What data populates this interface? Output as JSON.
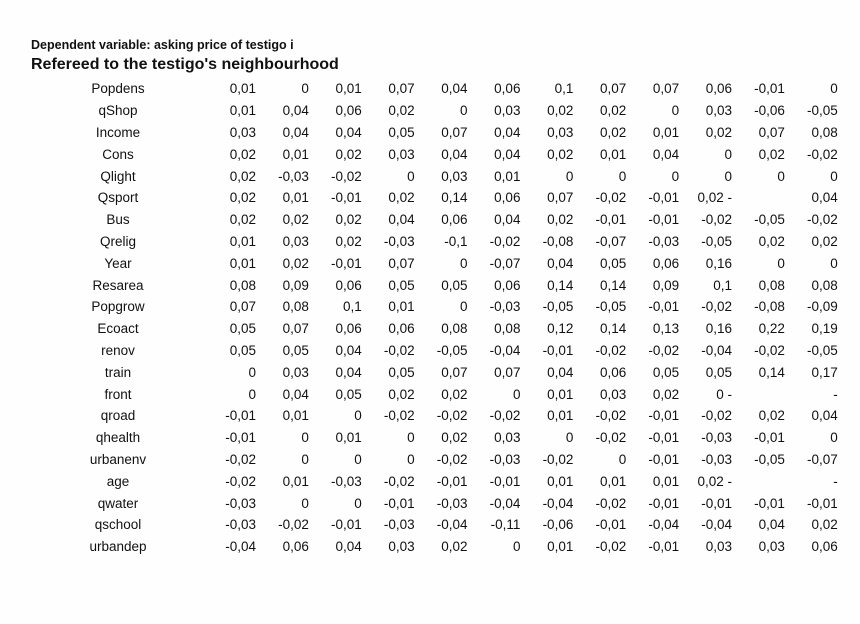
{
  "header": {
    "dependent": "Dependent variable: asking price of testigo i",
    "title": "Refereed to the testigo's neighbourhood"
  },
  "rows": [
    {
      "label": "Popdens",
      "values": [
        "0,01",
        "0",
        "0,01",
        "0,07",
        "0,04",
        "0,06",
        "0,1",
        "0,07",
        "0,07",
        "0,06",
        "-0,01",
        "0"
      ]
    },
    {
      "label": "qShop",
      "values": [
        "0,01",
        "0,04",
        "0,06",
        "0,02",
        "0",
        "0,03",
        "0,02",
        "0,02",
        "0",
        "0,03",
        "-0,06",
        "-0,05"
      ]
    },
    {
      "label": "Income",
      "values": [
        "0,03",
        "0,04",
        "0,04",
        "0,05",
        "0,07",
        "0,04",
        "0,03",
        "0,02",
        "0,01",
        "0,02",
        "0,07",
        "0,08"
      ]
    },
    {
      "label": "Cons",
      "values": [
        "0,02",
        "0,01",
        "0,02",
        "0,03",
        "0,04",
        "0,04",
        "0,02",
        "0,01",
        "0,04",
        "0",
        "0,02",
        "-0,02"
      ]
    },
    {
      "label": "Qlight",
      "values": [
        "0,02",
        "-0,03",
        "-0,02",
        "0",
        "0,03",
        "0,01",
        "0",
        "0",
        "0",
        "0",
        "0",
        "0"
      ]
    },
    {
      "label": "Qsport",
      "values": [
        "0,02",
        "0,01",
        "-0,01",
        "0,02",
        "0,14",
        "0,06",
        "0,07",
        "-0,02",
        "-0,01",
        "0,02 -",
        "",
        "0,04"
      ]
    },
    {
      "label": "Bus",
      "values": [
        "0,02",
        "0,02",
        "0,02",
        "0,04",
        "0,06",
        "0,04",
        "0,02",
        "-0,01",
        "-0,01",
        "-0,02",
        "-0,05",
        "-0,02"
      ]
    },
    {
      "label": "Qrelig",
      "values": [
        "0,01",
        "0,03",
        "0,02",
        "-0,03",
        "-0,1",
        "-0,02",
        "-0,08",
        "-0,07",
        "-0,03",
        "-0,05",
        "0,02",
        "0,02"
      ]
    },
    {
      "label": "Year",
      "values": [
        "0,01",
        "0,02",
        "-0,01",
        "0,07",
        "0",
        "-0,07",
        "0,04",
        "0,05",
        "0,06",
        "0,16",
        "0",
        "0"
      ]
    },
    {
      "label": "Resarea",
      "values": [
        "0,08",
        "0,09",
        "0,06",
        "0,05",
        "0,05",
        "0,06",
        "0,14",
        "0,14",
        "0,09",
        "0,1",
        "0,08",
        "0,08"
      ]
    },
    {
      "label": "Popgrow",
      "values": [
        "0,07",
        "0,08",
        "0,1",
        "0,01",
        "0",
        "-0,03",
        "-0,05",
        "-0,05",
        "-0,01",
        "-0,02",
        "-0,08",
        "-0,09"
      ]
    },
    {
      "label": "Ecoact",
      "values": [
        "0,05",
        "0,07",
        "0,06",
        "0,06",
        "0,08",
        "0,08",
        "0,12",
        "0,14",
        "0,13",
        "0,16",
        "0,22",
        "0,19"
      ]
    },
    {
      "label": "renov",
      "values": [
        "0,05",
        "0,05",
        "0,04",
        "-0,02",
        "-0,05",
        "-0,04",
        "-0,01",
        "-0,02",
        "-0,02",
        "-0,04",
        "-0,02",
        "-0,05"
      ]
    },
    {
      "label": "train",
      "values": [
        "0",
        "0,03",
        "0,04",
        "0,05",
        "0,07",
        "0,07",
        "0,04",
        "0,06",
        "0,05",
        "0,05",
        "0,14",
        "0,17"
      ]
    },
    {
      "label": "front",
      "values": [
        "0",
        "0,04",
        "0,05",
        "0,02",
        "0,02",
        "0",
        "0,01",
        "0,03",
        "0,02",
        "0 -",
        "",
        "-"
      ]
    },
    {
      "label": "qroad",
      "values": [
        "-0,01",
        "0,01",
        "0",
        "-0,02",
        "-0,02",
        "-0,02",
        "0,01",
        "-0,02",
        "-0,01",
        "-0,02",
        "0,02",
        "0,04"
      ]
    },
    {
      "label": "qhealth",
      "values": [
        "-0,01",
        "0",
        "0,01",
        "0",
        "0,02",
        "0,03",
        "0",
        "-0,02",
        "-0,01",
        "-0,03",
        "-0,01",
        "0"
      ]
    },
    {
      "label": "urbanenv",
      "values": [
        "-0,02",
        "0",
        "0",
        "0",
        "-0,02",
        "-0,03",
        "-0,02",
        "0",
        "-0,01",
        "-0,03",
        "-0,05",
        "-0,07"
      ]
    },
    {
      "label": "age",
      "values": [
        "-0,02",
        "0,01",
        "-0,03",
        "-0,02",
        "-0,01",
        "-0,01",
        "0,01",
        "0,01",
        "0,01",
        "0,02 -",
        "",
        "-"
      ]
    },
    {
      "label": "qwater",
      "values": [
        "-0,03",
        "0",
        "0",
        "-0,01",
        "-0,03",
        "-0,04",
        "-0,04",
        "-0,02",
        "-0,01",
        "-0,01",
        "-0,01",
        "-0,01"
      ]
    },
    {
      "label": "qschool",
      "values": [
        "-0,03",
        "-0,02",
        "-0,01",
        "-0,03",
        "-0,04",
        "-0,11",
        "-0,06",
        "-0,01",
        "-0,04",
        "-0,04",
        "0,04",
        "0,02"
      ]
    },
    {
      "label": "urbandep",
      "values": [
        "-0,04",
        "0,06",
        "0,04",
        "0,03",
        "0,02",
        "0",
        "0,01",
        "-0,02",
        "-0,01",
        "0,03",
        "0,03",
        "0,06"
      ]
    }
  ]
}
